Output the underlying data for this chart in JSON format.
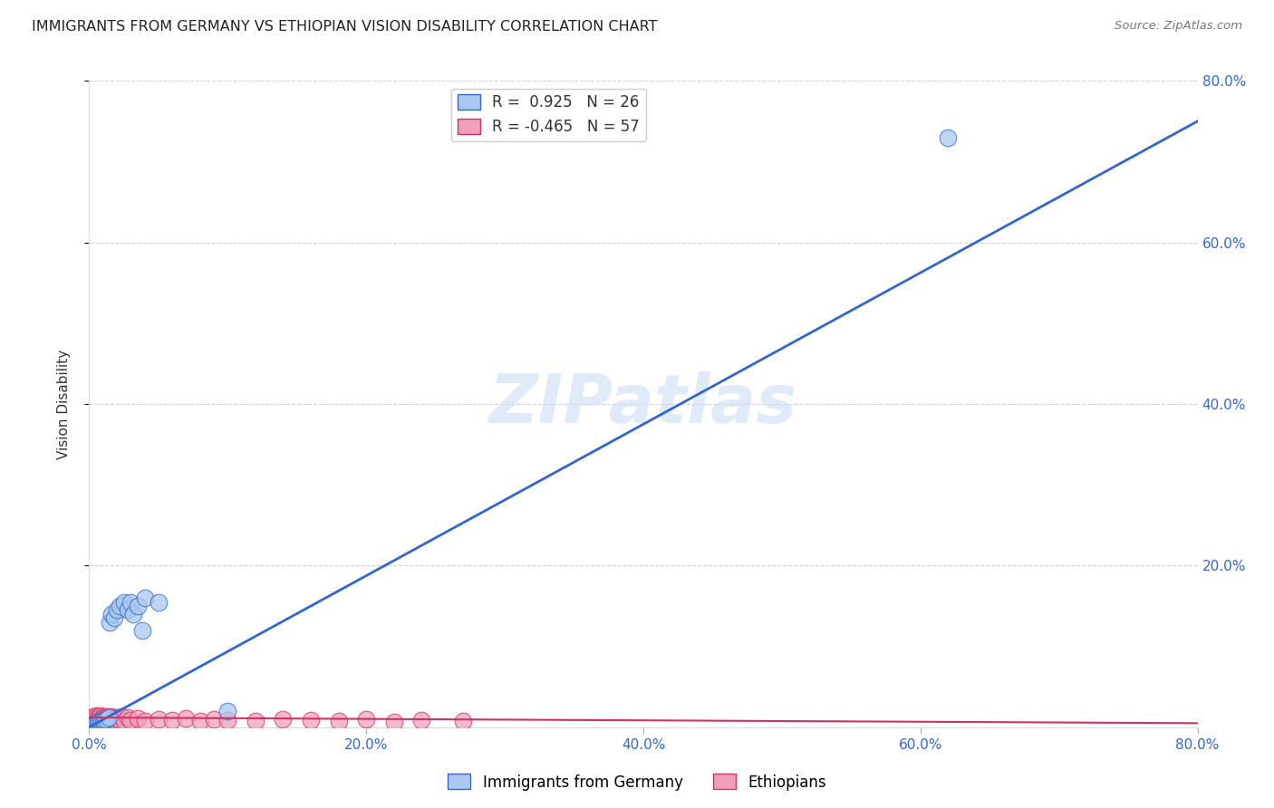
{
  "title": "IMMIGRANTS FROM GERMANY VS ETHIOPIAN VISION DISABILITY CORRELATION CHART",
  "source": "Source: ZipAtlas.com",
  "ylabel": "Vision Disability",
  "xlim": [
    0,
    0.8
  ],
  "ylim": [
    0,
    0.8
  ],
  "xticks": [
    0.0,
    0.2,
    0.4,
    0.6,
    0.8
  ],
  "yticks": [
    0.2,
    0.4,
    0.6,
    0.8
  ],
  "xticklabels": [
    "0.0%",
    "20.0%",
    "40.0%",
    "60.0%",
    "80.0%"
  ],
  "yticklabels": [
    "20.0%",
    "40.0%",
    "60.0%",
    "80.0%"
  ],
  "blue_R": 0.925,
  "blue_N": 26,
  "pink_R": -0.465,
  "pink_N": 57,
  "blue_color": "#aac8f0",
  "pink_color": "#f0a0b8",
  "blue_line_color": "#3366cc",
  "pink_line_color": "#cc3366",
  "watermark": "ZIPatlas",
  "background_color": "#ffffff",
  "grid_color": "#cccccc",
  "blue_line_x0": 0.0,
  "blue_line_y0": 0.0,
  "blue_line_x1": 0.8,
  "blue_line_y1": 0.75,
  "pink_line_x0": 0.0,
  "pink_line_y0": 0.012,
  "pink_line_x1": 0.8,
  "pink_line_y1": 0.005,
  "blue_scatter_x": [
    0.002,
    0.004,
    0.005,
    0.006,
    0.007,
    0.008,
    0.009,
    0.01,
    0.011,
    0.012,
    0.014,
    0.015,
    0.016,
    0.018,
    0.02,
    0.022,
    0.025,
    0.028,
    0.03,
    0.032,
    0.035,
    0.038,
    0.04,
    0.05,
    0.1,
    0.62
  ],
  "blue_scatter_y": [
    0.002,
    0.004,
    0.005,
    0.006,
    0.006,
    0.007,
    0.008,
    0.008,
    0.009,
    0.01,
    0.012,
    0.13,
    0.14,
    0.135,
    0.145,
    0.15,
    0.155,
    0.145,
    0.155,
    0.14,
    0.15,
    0.12,
    0.16,
    0.155,
    0.02,
    0.73
  ],
  "pink_scatter_x": [
    0.001,
    0.002,
    0.002,
    0.003,
    0.003,
    0.004,
    0.004,
    0.005,
    0.005,
    0.006,
    0.006,
    0.007,
    0.007,
    0.008,
    0.008,
    0.009,
    0.009,
    0.01,
    0.01,
    0.011,
    0.011,
    0.012,
    0.012,
    0.013,
    0.013,
    0.014,
    0.014,
    0.015,
    0.015,
    0.016,
    0.016,
    0.017,
    0.018,
    0.019,
    0.02,
    0.021,
    0.022,
    0.023,
    0.025,
    0.028,
    0.03,
    0.035,
    0.04,
    0.05,
    0.06,
    0.07,
    0.08,
    0.09,
    0.1,
    0.12,
    0.14,
    0.16,
    0.18,
    0.2,
    0.22,
    0.24,
    0.27
  ],
  "pink_scatter_y": [
    0.01,
    0.008,
    0.012,
    0.009,
    0.013,
    0.007,
    0.011,
    0.01,
    0.014,
    0.009,
    0.013,
    0.008,
    0.012,
    0.01,
    0.014,
    0.009,
    0.011,
    0.01,
    0.013,
    0.009,
    0.012,
    0.008,
    0.011,
    0.01,
    0.013,
    0.009,
    0.012,
    0.008,
    0.011,
    0.01,
    0.013,
    0.007,
    0.012,
    0.008,
    0.011,
    0.01,
    0.009,
    0.013,
    0.008,
    0.012,
    0.009,
    0.011,
    0.008,
    0.01,
    0.009,
    0.011,
    0.008,
    0.01,
    0.009,
    0.008,
    0.01,
    0.009,
    0.008,
    0.01,
    0.007,
    0.009,
    0.008
  ]
}
